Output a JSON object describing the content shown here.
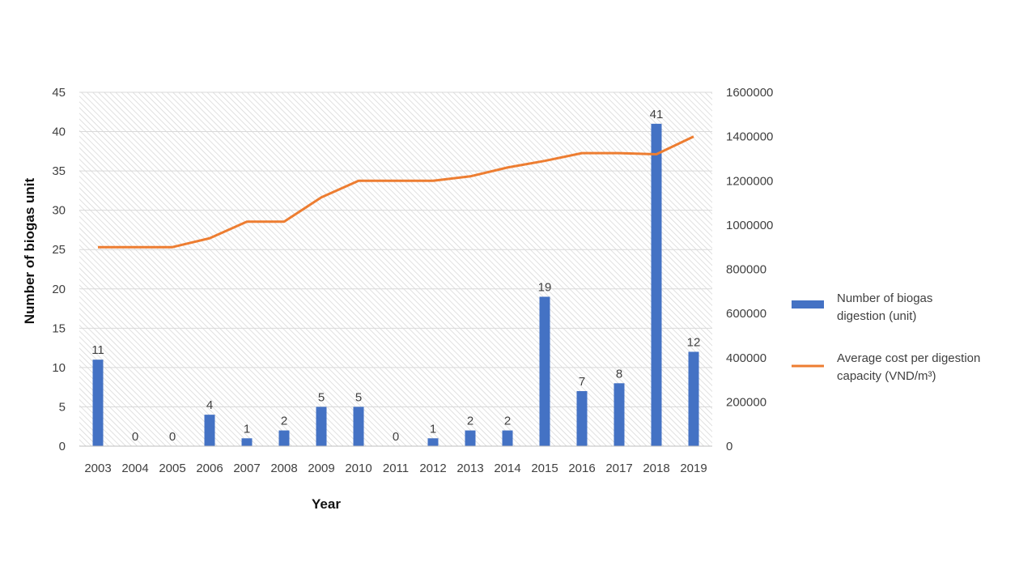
{
  "chart_data": {
    "type": "bar",
    "title": "",
    "xlabel": "Year",
    "ylabel": "Number of biogas unit",
    "y2label": "",
    "categories": [
      "2003",
      "2004",
      "2005",
      "2006",
      "2007",
      "2008",
      "2009",
      "2010",
      "2011",
      "2012",
      "2013",
      "2014",
      "2015",
      "2016",
      "2017",
      "2018",
      "2019"
    ],
    "series": [
      {
        "name": "Number of biogas digestion (unit)",
        "type": "bar",
        "axis": "left",
        "color": "#4472C4",
        "values": [
          11,
          0,
          0,
          4,
          1,
          2,
          5,
          5,
          0,
          1,
          2,
          2,
          19,
          7,
          8,
          41,
          12
        ],
        "data_labels": [
          "11",
          "0",
          "0",
          "4",
          "1",
          "2",
          "5",
          "5",
          "0",
          "1",
          "2",
          "2",
          "19",
          "7",
          "8",
          "41",
          "12"
        ]
      },
      {
        "name": "Average cost per digestion capacity (VND/m³)",
        "type": "line",
        "axis": "right",
        "color": "#ED7D31",
        "values": [
          900000,
          900000,
          900000,
          940000,
          1015000,
          1015000,
          1125000,
          1200000,
          1200000,
          1200000,
          1220000,
          1260000,
          1290000,
          1325000,
          1325000,
          1320000,
          1400000
        ]
      }
    ],
    "ylim": [
      0,
      45
    ],
    "y_ticks": [
      "0",
      "5",
      "10",
      "15",
      "20",
      "25",
      "30",
      "35",
      "40",
      "45"
    ],
    "y2lim": [
      0,
      1600000
    ],
    "y2_ticks": [
      "0",
      "200000",
      "400000",
      "600000",
      "800000",
      "1000000",
      "1200000",
      "1400000",
      "1600000"
    ],
    "grid": true,
    "legend_position": "right"
  }
}
